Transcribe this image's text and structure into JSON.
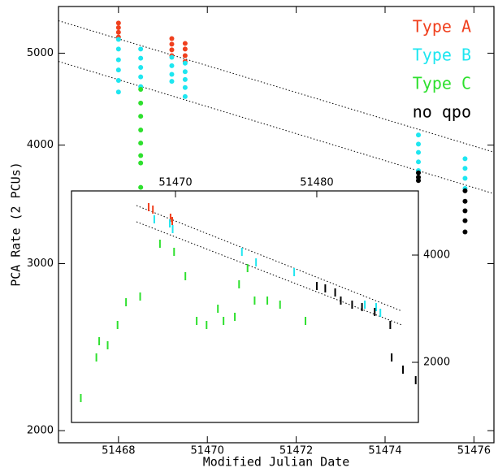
{
  "chart_data": [
    {
      "type": "scatter",
      "xlabel": "Modified Julian Date",
      "ylabel": "PCA Rate (2 PCUs)",
      "xlim": [
        51466.65,
        51476.45
      ],
      "ylim": [
        1942,
        5600
      ],
      "log_y": true,
      "xticks": [
        51468,
        51470,
        51472,
        51474,
        51476
      ],
      "yticks": [
        2000,
        3000,
        4000,
        5000
      ],
      "legend": "upper right",
      "series": [
        {
          "name": "Type A",
          "color": "#f0401e",
          "x": [
            51468,
            51468,
            51468,
            51468,
            51469.2,
            51469.2,
            51469.2,
            51469.2,
            51469.5,
            51469.5,
            51469.5,
            51469.5
          ],
          "y": [
            5380,
            5320,
            5260,
            5200,
            5180,
            5110,
            5040,
            4970,
            5120,
            5050,
            4970,
            4900
          ]
        },
        {
          "name": "Type B",
          "color": "#1ee6f0",
          "x": [
            51468,
            51468,
            51468,
            51468,
            51468,
            51468,
            51468.5,
            51468.5,
            51468.5,
            51468.5,
            51468.5,
            51469.2,
            51469.2,
            51469.2,
            51469.2,
            51469.5,
            51469.5,
            51469.5,
            51469.5,
            51469.5,
            51474.75,
            51474.75,
            51474.75,
            51474.75,
            51474.75,
            51475.8,
            51475.8,
            51475.8,
            51475.8
          ],
          "y": [
            5170,
            5050,
            4920,
            4800,
            4680,
            4550,
            5050,
            4940,
            4830,
            4720,
            4610,
            4950,
            4850,
            4750,
            4670,
            4880,
            4780,
            4690,
            4600,
            4500,
            4100,
            4010,
            3930,
            3840,
            3760,
            3870,
            3780,
            3690,
            3600
          ]
        },
        {
          "name": "Type C",
          "color": "#2ee02e",
          "x": [
            51468.5,
            51468.5,
            51468.5,
            51468.5,
            51468.5,
            51468.5,
            51468.5,
            51468.5
          ],
          "y": [
            4580,
            4430,
            4290,
            4150,
            4020,
            3900,
            3830,
            3610
          ]
        },
        {
          "name": "no qpo",
          "color": "#000000",
          "x": [
            51474.75,
            51474.75,
            51474.75,
            51475.8,
            51475.8,
            51475.8,
            51475.8,
            51475.8
          ],
          "y": [
            3740,
            3700,
            3670,
            3580,
            3490,
            3410,
            3330,
            3240
          ]
        }
      ],
      "trend_lines": [
        {
          "x": [
            51466.65,
            51476.45
          ],
          "y": [
            5410,
            3932
          ]
        },
        {
          "x": [
            51466.65,
            51476.45
          ],
          "y": [
            4901,
            3555
          ]
        }
      ]
    },
    {
      "type": "scatter",
      "xlim": [
        51462.64,
        51487.19
      ],
      "ylim": [
        879,
        5197
      ],
      "xticks": [
        51470,
        51480
      ],
      "yticks": [
        2000,
        4000
      ],
      "series": [
        {
          "color": "#f0401e",
          "x": [
            51468.1,
            51468.4,
            51469.65,
            51469.77
          ],
          "y": [
            4894,
            4848,
            4697,
            4636
          ]
        },
        {
          "color": "#1ee6f0",
          "x": [
            51468.5,
            51469.6,
            51469.8,
            51474.7,
            51475.7,
            51478.4,
            51483.4,
            51484.2,
            51484.5
          ],
          "y": [
            4667,
            4591,
            4485,
            4061,
            3864,
            3682,
            3076,
            3030,
            2924
          ]
        },
        {
          "color": "#2ee02e",
          "x": [
            51463.3,
            51464.4,
            51464.6,
            51465.2,
            51465.9,
            51466.5,
            51467.5,
            51468.9,
            51469.9,
            51470.7,
            51471.5,
            51472.2,
            51473.0,
            51473.4,
            51474.2,
            51474.5,
            51475.1,
            51475.6,
            51476.5,
            51477.4,
            51479.2
          ],
          "y": [
            1334,
            2091,
            2394,
            2318,
            2697,
            3121,
            3227,
            4212,
            4061,
            3606,
            2773,
            2697,
            3000,
            2773,
            2849,
            3455,
            3758,
            3152,
            3152,
            3076,
            2773
          ]
        },
        {
          "color": "#000000",
          "x": [
            51480.0,
            51480.6,
            51481.3,
            51481.7,
            51482.5,
            51483.2,
            51484.1,
            51485.2,
            51485.3,
            51486.1,
            51487.0
          ],
          "y": [
            3424,
            3379,
            3303,
            3152,
            3076,
            3030,
            2940,
            2697,
            2091,
            1864,
            1667
          ]
        }
      ],
      "trend_lines": [
        {
          "x": [
            51467.24,
            51486.03
          ],
          "y": [
            4924,
            2955
          ]
        },
        {
          "x": [
            51467.24,
            51486.03
          ],
          "y": [
            4621,
            2697
          ]
        }
      ]
    }
  ]
}
